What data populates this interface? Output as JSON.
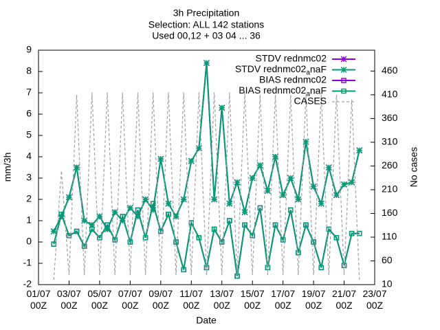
{
  "chart_data": {
    "type": "line",
    "title": [
      "3h Precipitation",
      "Selection: ALL    142 stations",
      "Used 00,12 + 03 04 ... 36"
    ],
    "xlabel": "Date",
    "ylabel": "mm/3h",
    "y2label": "No cases",
    "x": [
      2.0,
      2.5,
      3.0,
      3.5,
      4.0,
      4.5,
      5.0,
      5.5,
      6.0,
      6.5,
      7.0,
      7.5,
      8.0,
      8.5,
      9.0,
      9.5,
      10.0,
      10.5,
      11.0,
      11.5,
      12.0,
      12.5,
      13.0,
      13.5,
      14.0,
      14.5,
      15.0,
      15.5,
      16.0,
      16.5,
      17.0,
      17.5,
      18.0,
      18.5,
      19.0,
      19.5,
      20.0,
      20.5,
      21.0,
      21.5,
      22.0
    ],
    "xlim": [
      1,
      23
    ],
    "xticks": [
      {
        "value": 1,
        "label": "01/07\n00Z"
      },
      {
        "value": 3,
        "label": "03/07\n00Z"
      },
      {
        "value": 5,
        "label": "05/07\n00Z"
      },
      {
        "value": 7,
        "label": "07/07\n00Z"
      },
      {
        "value": 9,
        "label": "09/07\n00Z"
      },
      {
        "value": 11,
        "label": "11/07\n00Z"
      },
      {
        "value": 13,
        "label": "13/07\n00Z"
      },
      {
        "value": 15,
        "label": "15/07\n00Z"
      },
      {
        "value": 17,
        "label": "17/07\n00Z"
      },
      {
        "value": 19,
        "label": "19/07\n00Z"
      },
      {
        "value": 21,
        "label": "21/07\n00Z"
      },
      {
        "value": 23,
        "label": "23/07\n00Z"
      }
    ],
    "ylim": [
      -2,
      9
    ],
    "yticks": [
      -2,
      -1,
      0,
      1,
      2,
      3,
      4,
      5,
      6,
      7,
      8,
      9
    ],
    "y2lim": [
      10,
      504
    ],
    "y2ticks": [
      10,
      60,
      110,
      160,
      210,
      260,
      310,
      360,
      410,
      460
    ],
    "grid": false,
    "legend": "top-right",
    "series": [
      {
        "name": "STDV rednmc02",
        "color": "#9400d3",
        "marker": "star",
        "values": [
          0.5,
          1.2,
          2.1,
          3.5,
          1.0,
          0.8,
          1.2,
          0.6,
          1.4,
          1.0,
          1.6,
          1.2,
          2.0,
          1.5,
          3.9,
          1.8,
          1.2,
          2.0,
          3.8,
          4.4,
          8.4,
          2.0,
          6.3,
          1.8,
          2.8,
          1.4,
          3.0,
          3.6,
          2.4,
          4.0,
          2.2,
          3.0,
          2.0,
          4.7,
          2.6,
          1.8,
          3.5,
          2.2,
          2.7,
          2.8,
          4.3
        ]
      },
      {
        "name": "STDV rednmc02_anaF",
        "color": "#009e73",
        "marker": "star",
        "values": [
          0.5,
          1.2,
          2.1,
          3.5,
          1.0,
          0.8,
          1.2,
          0.6,
          1.4,
          1.0,
          1.6,
          1.2,
          2.0,
          1.5,
          3.9,
          1.8,
          1.2,
          2.0,
          3.8,
          4.4,
          8.4,
          2.0,
          6.3,
          1.8,
          2.8,
          1.4,
          3.0,
          3.6,
          2.4,
          4.0,
          2.2,
          3.0,
          2.0,
          4.7,
          2.6,
          1.8,
          3.5,
          2.2,
          2.7,
          2.8,
          4.3
        ]
      },
      {
        "name": "BIAS rednmc02",
        "color": "#9400d3",
        "marker": "square",
        "values": [
          -0.1,
          1.3,
          0.3,
          0.5,
          -0.2,
          0.6,
          0.2,
          0.8,
          0.1,
          1.2,
          0.0,
          1.5,
          0.2,
          1.8,
          0.5,
          1.3,
          0.0,
          -1.3,
          0.9,
          0.2,
          -1.2,
          0.6,
          0.0,
          1.0,
          -1.6,
          0.8,
          0.3,
          1.6,
          -1.2,
          0.8,
          0.1,
          1.5,
          -0.5,
          0.8,
          0.0,
          -1.2,
          0.6,
          0.2,
          -1.1,
          0.4,
          0.4
        ]
      },
      {
        "name": "BIAS rednmc02_anaF",
        "color": "#009e73",
        "marker": "square",
        "values": [
          -0.1,
          1.3,
          0.3,
          0.5,
          -0.2,
          0.6,
          0.2,
          0.8,
          0.1,
          1.2,
          0.0,
          1.5,
          0.2,
          1.8,
          0.5,
          1.3,
          0.0,
          -1.3,
          0.9,
          0.2,
          -1.2,
          0.6,
          0.0,
          1.0,
          -1.6,
          0.8,
          0.3,
          1.6,
          -1.2,
          0.8,
          0.1,
          1.5,
          -0.5,
          0.8,
          0.0,
          -1.2,
          0.6,
          0.2,
          -1.1,
          0.4,
          0.4
        ]
      },
      {
        "name": "CASES",
        "color": "#a0a0a0",
        "marker": "none",
        "axis": "y2",
        "values": [
          20,
          250,
          30,
          410,
          30,
          415,
          30,
          415,
          30,
          415,
          30,
          415,
          30,
          415,
          30,
          415,
          30,
          415,
          30,
          415,
          30,
          415,
          30,
          415,
          30,
          415,
          30,
          410,
          30,
          410,
          30,
          410,
          30,
          410,
          30,
          410,
          30,
          410,
          30,
          400,
          20
        ]
      }
    ]
  }
}
